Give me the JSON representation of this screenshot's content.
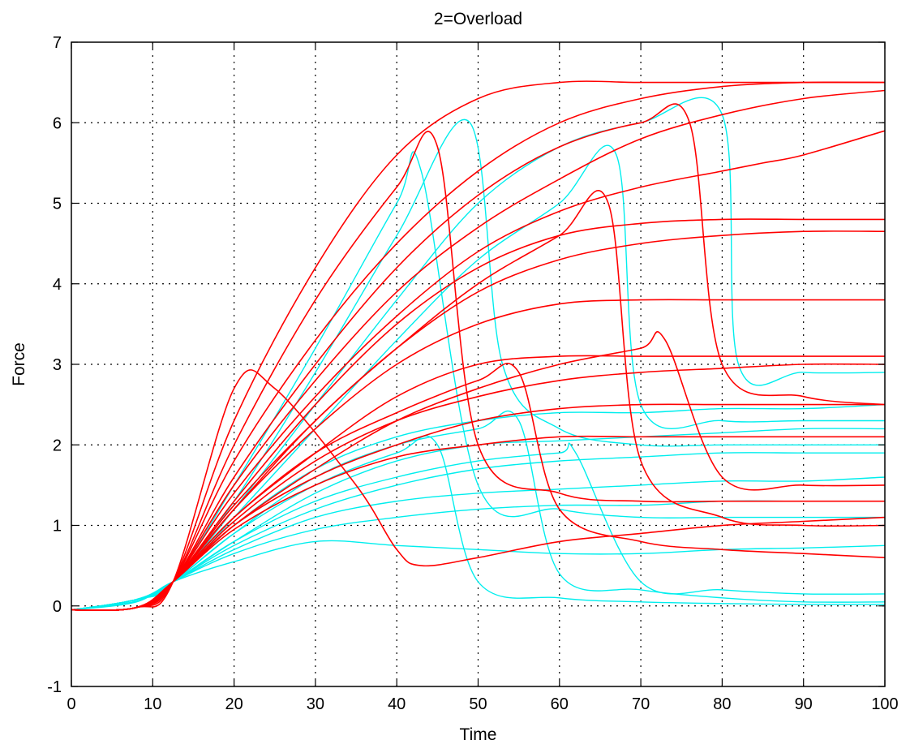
{
  "chart_data": {
    "type": "line",
    "title": "2=Overload",
    "xlabel": "Time",
    "ylabel": "Force",
    "xlim": [
      0,
      100
    ],
    "ylim": [
      -1,
      7
    ],
    "xticks": [
      "0",
      "10",
      "20",
      "30",
      "40",
      "50",
      "60",
      "70",
      "80",
      "90",
      "100"
    ],
    "yticks": [
      "-1",
      "0",
      "1",
      "2",
      "3",
      "4",
      "5",
      "6",
      "7"
    ],
    "grid": true,
    "grid_style": "dotted",
    "colors": {
      "cyan_series": "#00eeee",
      "red_series": "#ff0000",
      "axes": "#000000",
      "grid": "#000000"
    },
    "series": [
      {
        "color": "cyan",
        "x": [
          0,
          8,
          12.5,
          20,
          30,
          40,
          50,
          60,
          70,
          80,
          90,
          100
        ],
        "y": [
          -0.05,
          0.05,
          0.3,
          0.55,
          0.8,
          0.75,
          0.7,
          0.65,
          0.65,
          0.7,
          0.72,
          0.75
        ]
      },
      {
        "color": "cyan",
        "x": [
          0,
          8,
          12.5,
          20,
          30,
          40,
          50,
          60,
          70,
          80,
          90,
          100
        ],
        "y": [
          -0.05,
          0.08,
          0.3,
          0.7,
          1.1,
          1.3,
          1.4,
          1.45,
          1.5,
          1.55,
          1.55,
          1.6
        ]
      },
      {
        "color": "cyan",
        "x": [
          0,
          8,
          12.5,
          20,
          30,
          40,
          50,
          60,
          70,
          80,
          90,
          100
        ],
        "y": [
          -0.05,
          0.08,
          0.3,
          0.8,
          1.4,
          1.8,
          2.0,
          2.05,
          2.1,
          2.15,
          2.2,
          2.2
        ]
      },
      {
        "color": "cyan",
        "x": [
          0,
          8,
          12.5,
          20,
          30,
          40,
          45,
          50,
          60,
          70,
          80,
          90,
          100
        ],
        "y": [
          -0.05,
          0.08,
          0.3,
          0.9,
          1.5,
          1.9,
          2.0,
          0.3,
          0.1,
          0.05,
          0.03,
          0.02,
          0.02
        ]
      },
      {
        "color": "cyan",
        "x": [
          0,
          8,
          12.5,
          20,
          30,
          40,
          50,
          55,
          60,
          70,
          80,
          90,
          100
        ],
        "y": [
          -0.05,
          0.08,
          0.3,
          0.9,
          1.6,
          2.0,
          2.2,
          2.3,
          0.4,
          0.2,
          0.1,
          0.05,
          0.05
        ]
      },
      {
        "color": "cyan",
        "x": [
          0,
          8,
          12.5,
          20,
          30,
          40,
          50,
          60,
          70,
          80,
          90,
          100
        ],
        "y": [
          -0.05,
          0.08,
          0.3,
          1.0,
          1.7,
          2.1,
          2.3,
          2.4,
          2.4,
          2.45,
          2.45,
          2.5
        ]
      },
      {
        "color": "cyan",
        "x": [
          0,
          8,
          12.5,
          20,
          30,
          40,
          50,
          60,
          70,
          80,
          90,
          100
        ],
        "y": [
          -0.05,
          0.06,
          0.3,
          0.75,
          1.2,
          1.5,
          1.7,
          1.8,
          1.85,
          1.9,
          1.9,
          1.9
        ]
      },
      {
        "color": "cyan",
        "x": [
          0,
          8,
          12.5,
          20,
          30,
          40,
          50,
          60,
          70,
          80,
          90,
          100
        ],
        "y": [
          -0.05,
          0.06,
          0.3,
          0.65,
          0.95,
          1.1,
          1.2,
          1.25,
          1.25,
          1.3,
          1.3,
          1.3
        ]
      },
      {
        "color": "cyan",
        "x": [
          0,
          8,
          12.5,
          20,
          30,
          40,
          50,
          60,
          62,
          70,
          80,
          90,
          100
        ],
        "y": [
          -0.05,
          0.08,
          0.3,
          0.8,
          1.3,
          1.6,
          1.8,
          1.9,
          1.9,
          0.3,
          0.2,
          0.15,
          0.15
        ]
      },
      {
        "color": "cyan",
        "x": [
          0,
          8,
          12.5,
          20,
          30,
          40,
          50,
          60,
          70,
          80,
          82,
          90,
          100
        ],
        "y": [
          -0.05,
          0.08,
          0.3,
          1.2,
          2.5,
          3.8,
          5.0,
          5.7,
          6.0,
          6.1,
          3.0,
          2.9,
          2.9
        ]
      },
      {
        "color": "cyan",
        "x": [
          0,
          8,
          12.5,
          20,
          30,
          40,
          43,
          50,
          60,
          70,
          80,
          90,
          100
        ],
        "y": [
          -0.05,
          0.08,
          0.3,
          1.5,
          3.2,
          5.0,
          5.4,
          1.5,
          1.2,
          1.1,
          1.1,
          1.1,
          1.1
        ]
      },
      {
        "color": "cyan",
        "x": [
          0,
          8,
          12.5,
          20,
          30,
          40,
          50,
          60,
          67,
          70,
          80,
          90,
          100
        ],
        "y": [
          -0.05,
          0.08,
          0.3,
          1.1,
          2.2,
          3.3,
          4.3,
          5.0,
          5.6,
          2.5,
          2.3,
          2.3,
          2.3
        ]
      },
      {
        "color": "cyan",
        "x": [
          0,
          8,
          12.5,
          20,
          30,
          40,
          49,
          53,
          60,
          70,
          80,
          90,
          100
        ],
        "y": [
          -0.05,
          0.08,
          0.3,
          1.3,
          2.9,
          4.6,
          6.0,
          3.0,
          2.2,
          2.0,
          2.0,
          2.0,
          2.0
        ]
      },
      {
        "color": "red",
        "x": [
          0,
          8,
          12.5,
          20,
          30,
          40,
          50,
          60,
          70,
          80,
          90,
          100
        ],
        "y": [
          -0.05,
          -0.02,
          0.3,
          2.3,
          4.2,
          5.6,
          6.3,
          6.5,
          6.5,
          6.5,
          6.5,
          6.5
        ]
      },
      {
        "color": "red",
        "x": [
          0,
          8,
          12.5,
          20,
          30,
          40,
          50,
          60,
          70,
          80,
          90,
          100
        ],
        "y": [
          -0.05,
          -0.02,
          0.3,
          1.8,
          3.3,
          4.5,
          5.4,
          6.0,
          6.3,
          6.45,
          6.5,
          6.5
        ]
      },
      {
        "color": "red",
        "x": [
          0,
          8,
          12.5,
          20,
          30,
          40,
          50,
          60,
          70,
          80,
          90,
          100
        ],
        "y": [
          -0.05,
          -0.02,
          0.3,
          1.5,
          2.8,
          3.9,
          4.7,
          5.3,
          5.8,
          6.1,
          6.3,
          6.4
        ]
      },
      {
        "color": "red",
        "x": [
          0,
          8,
          12.5,
          20,
          30,
          40,
          50,
          60,
          70,
          80,
          90,
          100
        ],
        "y": [
          -0.05,
          -0.02,
          0.3,
          1.0,
          1.6,
          2.0,
          2.3,
          2.45,
          2.5,
          2.5,
          2.5,
          2.5
        ]
      },
      {
        "color": "red",
        "x": [
          0,
          8,
          12.5,
          20,
          30,
          40,
          50,
          60,
          70,
          80,
          90,
          100
        ],
        "y": [
          -0.05,
          -0.02,
          0.3,
          1.1,
          1.9,
          2.6,
          3.0,
          3.1,
          3.1,
          3.1,
          3.1,
          3.1
        ]
      },
      {
        "color": "red",
        "x": [
          0,
          8,
          12.5,
          20,
          30,
          40,
          50,
          60,
          70,
          80,
          90,
          100
        ],
        "y": [
          -0.05,
          -0.02,
          0.3,
          1.2,
          2.2,
          3.0,
          3.5,
          3.75,
          3.8,
          3.8,
          3.8,
          3.8
        ]
      },
      {
        "color": "red",
        "x": [
          0,
          8,
          12.5,
          20,
          30,
          40,
          50,
          60,
          70,
          80,
          90,
          100
        ],
        "y": [
          -0.05,
          -0.02,
          0.3,
          1.3,
          2.5,
          3.5,
          4.2,
          4.6,
          4.75,
          4.8,
          4.8,
          4.8
        ]
      },
      {
        "color": "red",
        "x": [
          0,
          8,
          12.5,
          20,
          30,
          40,
          50,
          60,
          70,
          80,
          90,
          100
        ],
        "y": [
          -0.05,
          -0.02,
          0.3,
          1.25,
          2.3,
          3.2,
          3.9,
          4.3,
          4.5,
          4.6,
          4.65,
          4.65
        ]
      },
      {
        "color": "red",
        "x": [
          0,
          8,
          12.5,
          20,
          30,
          40,
          50,
          60,
          70,
          80,
          90,
          100
        ],
        "y": [
          -0.05,
          -0.02,
          0.3,
          0.95,
          1.5,
          1.85,
          2.0,
          2.1,
          2.1,
          2.1,
          2.1,
          2.1
        ]
      },
      {
        "color": "red",
        "x": [
          0,
          8,
          12.5,
          20,
          30,
          40,
          50,
          60,
          70,
          76,
          80,
          90,
          100
        ],
        "y": [
          -0.05,
          -0.02,
          0.3,
          1.6,
          3.0,
          4.2,
          5.1,
          5.7,
          6.0,
          6.0,
          3.0,
          2.6,
          2.5
        ]
      },
      {
        "color": "red",
        "x": [
          0,
          8,
          12.5,
          20,
          30,
          40,
          50,
          60,
          66,
          70,
          80,
          90,
          100
        ],
        "y": [
          -0.05,
          -0.02,
          0.3,
          1.2,
          2.3,
          3.2,
          4.0,
          4.6,
          5.0,
          1.8,
          1.1,
          1.0,
          1.0
        ]
      },
      {
        "color": "red",
        "x": [
          0,
          8,
          12.5,
          20,
          30,
          40,
          45,
          50,
          60,
          70,
          80,
          90,
          100
        ],
        "y": [
          -0.05,
          -0.02,
          0.3,
          2.0,
          3.8,
          5.2,
          5.7,
          2.0,
          1.4,
          1.3,
          1.3,
          1.3,
          1.3
        ]
      },
      {
        "color": "red",
        "x": [
          0,
          8,
          12.5,
          20,
          30,
          40,
          50,
          55,
          60,
          70,
          80,
          90,
          100
        ],
        "y": [
          -0.05,
          -0.02,
          0.3,
          1.1,
          1.9,
          2.4,
          2.8,
          2.9,
          1.2,
          0.8,
          0.7,
          0.65,
          0.6
        ]
      },
      {
        "color": "red",
        "x": [
          0,
          8,
          12.5,
          20,
          25,
          35,
          40,
          43,
          50,
          60,
          70,
          80,
          90,
          100
        ],
        "y": [
          -0.05,
          -0.02,
          0.3,
          2.7,
          2.7,
          1.5,
          0.7,
          0.5,
          0.6,
          0.8,
          0.9,
          1.0,
          1.05,
          1.1
        ]
      },
      {
        "color": "red",
        "x": [
          0,
          8,
          12.5,
          20,
          30,
          40,
          50,
          60,
          70,
          80,
          85,
          90,
          100
        ],
        "y": [
          -0.05,
          -0.02,
          0.3,
          1.4,
          2.6,
          3.6,
          4.4,
          4.9,
          5.2,
          5.4,
          5.5,
          5.6,
          5.9
        ]
      },
      {
        "color": "red",
        "x": [
          0,
          8,
          12.5,
          20,
          30,
          40,
          50,
          60,
          70,
          73,
          80,
          90,
          100
        ],
        "y": [
          -0.05,
          -0.02,
          0.3,
          1.0,
          1.7,
          2.3,
          2.7,
          3.0,
          3.2,
          3.3,
          1.6,
          1.5,
          1.5
        ]
      },
      {
        "color": "red",
        "x": [
          0,
          8,
          12.5,
          20,
          30,
          40,
          50,
          60,
          70,
          80,
          90,
          100
        ],
        "y": [
          -0.05,
          -0.02,
          0.3,
          1.05,
          1.8,
          2.3,
          2.6,
          2.8,
          2.9,
          2.95,
          3.0,
          3.0
        ]
      }
    ]
  }
}
